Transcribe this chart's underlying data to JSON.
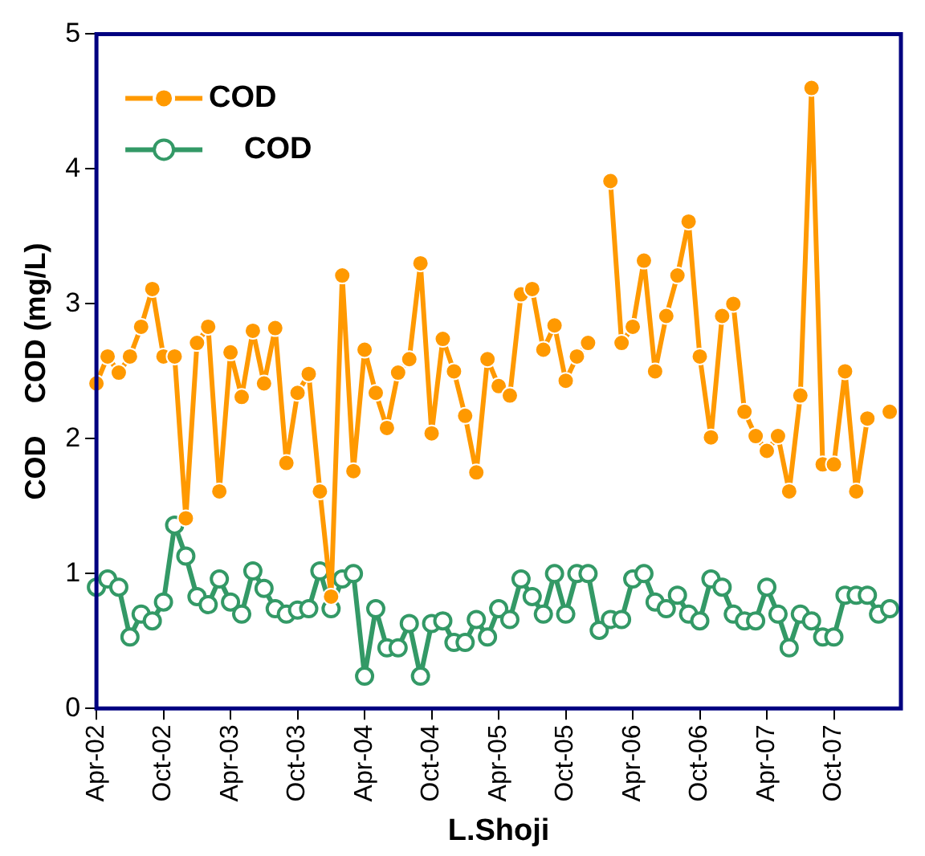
{
  "chart_data": {
    "type": "line",
    "xlabel": "L.Shoji",
    "ylabel": "COD    COD (mg/L)",
    "x": [
      "2002-04",
      "2002-05",
      "2002-06",
      "2002-07",
      "2002-08",
      "2002-09",
      "2002-10",
      "2002-11",
      "2002-12",
      "2003-01",
      "2003-02",
      "2003-03",
      "2003-04",
      "2003-05",
      "2003-06",
      "2003-07",
      "2003-08",
      "2003-09",
      "2003-10",
      "2003-11",
      "2003-12",
      "2004-01",
      "2004-02",
      "2004-03",
      "2004-04",
      "2004-05",
      "2004-06",
      "2004-07",
      "2004-08",
      "2004-09",
      "2004-10",
      "2004-11",
      "2004-12",
      "2005-01",
      "2005-02",
      "2005-03",
      "2005-04",
      "2005-05",
      "2005-06",
      "2005-07",
      "2005-08",
      "2005-09",
      "2005-10",
      "2005-11",
      "2005-12",
      "2006-01",
      "2006-02",
      "2006-03",
      "2006-04",
      "2006-05",
      "2006-06",
      "2006-07",
      "2006-08",
      "2006-09",
      "2006-10",
      "2006-11",
      "2006-12",
      "2007-01",
      "2007-02",
      "2007-03",
      "2007-04",
      "2007-05",
      "2007-06",
      "2007-07",
      "2007-08",
      "2007-09",
      "2007-10",
      "2007-11",
      "2007-12",
      "2008-01",
      "2008-02",
      "2008-03"
    ],
    "series": [
      {
        "name": "COD",
        "color": "#ff9900",
        "marker": "circle",
        "values": [
          2.41,
          2.61,
          2.49,
          2.61,
          2.83,
          3.11,
          2.61,
          2.61,
          1.41,
          2.71,
          2.83,
          1.61,
          2.64,
          2.31,
          2.8,
          2.41,
          2.82,
          1.82,
          2.34,
          2.48,
          1.61,
          0.83,
          3.21,
          1.76,
          2.66,
          2.34,
          2.08,
          2.49,
          2.59,
          3.3,
          2.04,
          2.74,
          2.5,
          2.17,
          1.75,
          2.59,
          2.39,
          2.32,
          3.07,
          3.11,
          2.66,
          2.84,
          2.43,
          2.61,
          2.71,
          null,
          3.91,
          2.71,
          2.83,
          3.32,
          2.5,
          2.91,
          3.21,
          3.61,
          2.61,
          2.01,
          2.91,
          3.0,
          2.2,
          2.02,
          1.91,
          2.02,
          1.61,
          2.32,
          4.6,
          1.81,
          1.81,
          2.5,
          1.61,
          2.15,
          null,
          2.2
        ]
      },
      {
        "name": "COD",
        "color": "#339966",
        "marker": "circle",
        "values": [
          0.9,
          0.96,
          0.9,
          0.53,
          0.7,
          0.65,
          0.79,
          1.36,
          1.13,
          0.83,
          0.77,
          0.96,
          0.79,
          0.7,
          1.02,
          0.89,
          0.74,
          0.7,
          0.73,
          0.74,
          1.02,
          0.74,
          0.96,
          1.0,
          0.24,
          0.74,
          0.45,
          0.45,
          0.63,
          0.24,
          0.63,
          0.65,
          0.49,
          0.49,
          0.66,
          0.53,
          0.74,
          0.66,
          0.96,
          0.83,
          0.7,
          1.0,
          0.7,
          1.0,
          1.0,
          0.58,
          0.66,
          0.66,
          0.96,
          1.0,
          0.79,
          0.74,
          0.84,
          0.7,
          0.65,
          0.96,
          0.9,
          0.7,
          0.65,
          0.65,
          0.9,
          0.7,
          0.45,
          0.7,
          0.65,
          0.53,
          0.53,
          0.84,
          0.84,
          0.84,
          0.7,
          0.74
        ]
      }
    ],
    "xlim": [
      "2002-04",
      "2008-04"
    ],
    "xticks": [
      {
        "value": "2002-04",
        "label": "Apr-02"
      },
      {
        "value": "2002-10",
        "label": "Oct-02"
      },
      {
        "value": "2003-04",
        "label": "Apr-03"
      },
      {
        "value": "2003-10",
        "label": "Oct-03"
      },
      {
        "value": "2004-04",
        "label": "Apr-04"
      },
      {
        "value": "2004-10",
        "label": "Oct-04"
      },
      {
        "value": "2005-04",
        "label": "Apr-05"
      },
      {
        "value": "2005-10",
        "label": "Oct-05"
      },
      {
        "value": "2006-04",
        "label": "Apr-06"
      },
      {
        "value": "2006-10",
        "label": "Oct-06"
      },
      {
        "value": "2007-04",
        "label": "Apr-07"
      },
      {
        "value": "2007-10",
        "label": "Oct-07"
      }
    ],
    "ylim": [
      0,
      5
    ],
    "yticks": [
      0,
      1,
      2,
      3,
      4,
      5
    ],
    "grid": false,
    "legend": "top left",
    "line_style": "solid"
  }
}
